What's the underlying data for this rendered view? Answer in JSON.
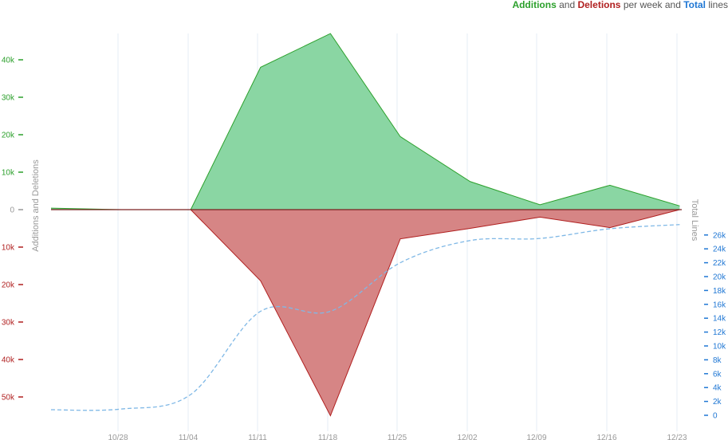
{
  "legend": {
    "additions": "Additions",
    "and": " and ",
    "deletions": "Deletions",
    "per_week_and": " per week and ",
    "total": "Total",
    "lines": " lines"
  },
  "colors": {
    "additions_fill": "#8ad6a3",
    "additions_line": "#2ca02c",
    "deletions_fill": "#d68585",
    "deletions_line": "#b01f1f",
    "total_line": "#7fb8e6",
    "left_pos_tick": "#2ca02c",
    "left_neg_tick": "#b01f1f",
    "right_tick": "#1f77d4",
    "grid": "#e6eef5",
    "x_tick": "#999999"
  },
  "chart_data": {
    "type": "area",
    "x_ticks": [
      "10/28",
      "11/04",
      "11/11",
      "11/18",
      "11/25",
      "12/02",
      "12/09",
      "12/16",
      "12/23"
    ],
    "weeks": [
      "10/21",
      "10/28",
      "11/04",
      "11/11",
      "11/18",
      "11/25",
      "12/02",
      "12/09",
      "12/16",
      "12/23"
    ],
    "left_axis": {
      "label": "Additions and Deletions",
      "ticks": [
        40000,
        30000,
        20000,
        10000,
        0,
        -10000,
        -20000,
        -30000,
        -40000,
        -50000
      ],
      "tick_labels": [
        "40k",
        "30k",
        "20k",
        "10k",
        "0",
        "10k",
        "20k",
        "30k",
        "40k",
        "50k"
      ],
      "ylim": [
        -55000,
        47000
      ]
    },
    "right_axis": {
      "label": "Total Lines",
      "ticks": [
        0,
        2000,
        4000,
        6000,
        8000,
        10000,
        12000,
        14000,
        16000,
        18000,
        20000,
        22000,
        24000,
        26000
      ],
      "tick_labels": [
        "0",
        "2k",
        "4k",
        "6k",
        "8k",
        "10k",
        "12k",
        "14k",
        "16k",
        "18k",
        "20k",
        "22k",
        "24k",
        "26k"
      ],
      "ylim": [
        -600,
        27500
      ]
    },
    "series": [
      {
        "name": "Additions",
        "values": [
          400,
          0,
          0,
          38000,
          47000,
          19500,
          7500,
          1300,
          6500,
          1000
        ]
      },
      {
        "name": "Deletions",
        "values": [
          0,
          0,
          0,
          -19000,
          -55000,
          -7800,
          -5000,
          -2000,
          -4800,
          0
        ]
      },
      {
        "name": "Total",
        "values": [
          800,
          900,
          3000,
          15000,
          15000,
          22000,
          25200,
          25500,
          26900,
          27500
        ]
      }
    ],
    "grid": true,
    "legend_position": "top-right"
  }
}
